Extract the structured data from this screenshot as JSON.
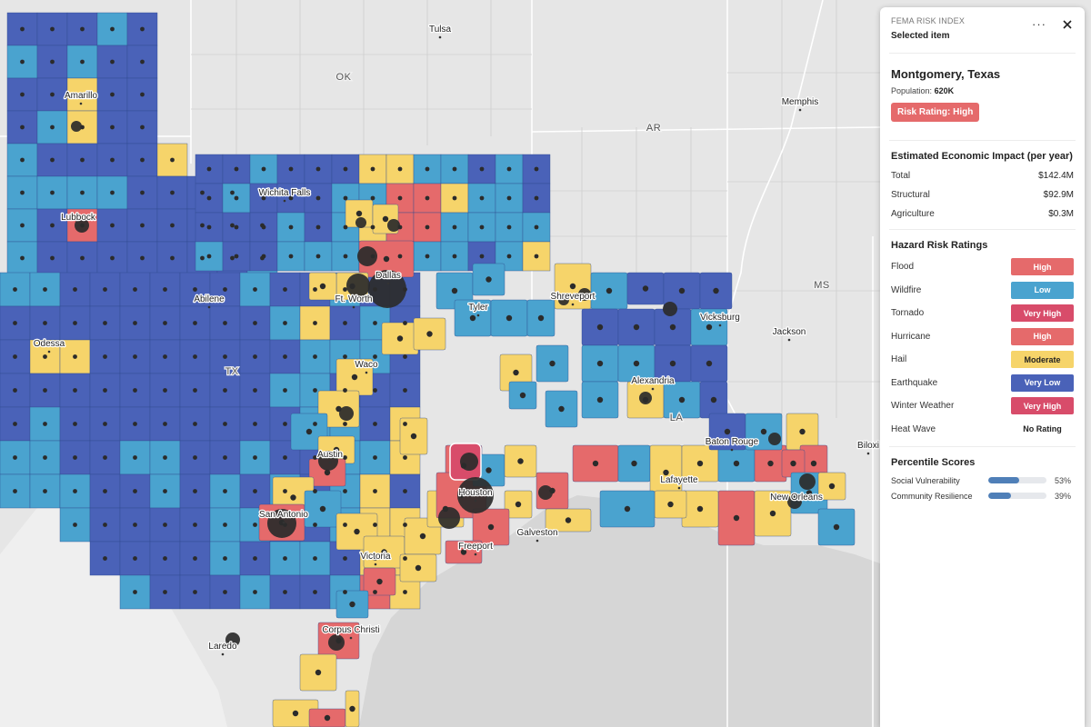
{
  "map": {
    "colors": {
      "very_low": "#4a62b8",
      "low": "#4aa3cf",
      "moderate": "#f6d46a",
      "high": "#e56a6b",
      "very_high": "#d84c6a",
      "water": "#d4d4d4",
      "land": "#e6e6e6",
      "dot": "#2b2b2b"
    },
    "state_labels": [
      "OK",
      "AR",
      "MS",
      "TX",
      "LA"
    ],
    "city_labels": [
      "Tulsa",
      "Memphis",
      "Amarillo",
      "Wichita Falls",
      "Lubbock",
      "Dallas",
      "Ft. Worth",
      "Abilene",
      "Tyler",
      "Shreveport",
      "Vicksburg",
      "Jackson",
      "Odessa",
      "Waco",
      "Alexandria",
      "Austin",
      "Baton Rouge",
      "Biloxi",
      "Houston",
      "Lafayette",
      "New Orleans",
      "San Antonio",
      "Galveston",
      "Freeport",
      "Victoria",
      "Corpus Christi",
      "Laredo"
    ]
  },
  "panel": {
    "kicker": "FEMA RISK INDEX",
    "subtitle": "Selected item",
    "more_icon": "ellipsis-icon",
    "close_icon": "close-icon",
    "place": "Montgomery, Texas",
    "population_label": "Population:",
    "population_value": "620K",
    "risk_rating": "Risk Rating: High",
    "risk_color": "#e56a6b",
    "economic": {
      "title": "Estimated Economic Impact (per year)",
      "rows": [
        {
          "label": "Total",
          "value": "$142.4M"
        },
        {
          "label": "Structural",
          "value": "$92.9M"
        },
        {
          "label": "Agriculture",
          "value": "$0.3M"
        }
      ]
    },
    "hazards": {
      "title": "Hazard Risk Ratings",
      "rows": [
        {
          "label": "Flood",
          "rating": "High",
          "color": "#e56a6b"
        },
        {
          "label": "Wildfire",
          "rating": "Low",
          "color": "#4aa3cf"
        },
        {
          "label": "Tornado",
          "rating": "Very High",
          "color": "#d84c6a"
        },
        {
          "label": "Hurricane",
          "rating": "High",
          "color": "#e56a6b"
        },
        {
          "label": "Hail",
          "rating": "Moderate",
          "color": "#f6d46a"
        },
        {
          "label": "Earthquake",
          "rating": "Very Low",
          "color": "#4a62b8"
        },
        {
          "label": "Winter Weather",
          "rating": "Very High",
          "color": "#d84c6a"
        },
        {
          "label": "Heat Wave",
          "rating": "No Rating",
          "color": ""
        }
      ]
    },
    "percentiles": {
      "title": "Percentile Scores",
      "rows": [
        {
          "label": "Social Vulnerability",
          "value": "53%",
          "fraction": 0.53
        },
        {
          "label": "Community Resilience",
          "value": "39%",
          "fraction": 0.39
        }
      ]
    }
  }
}
